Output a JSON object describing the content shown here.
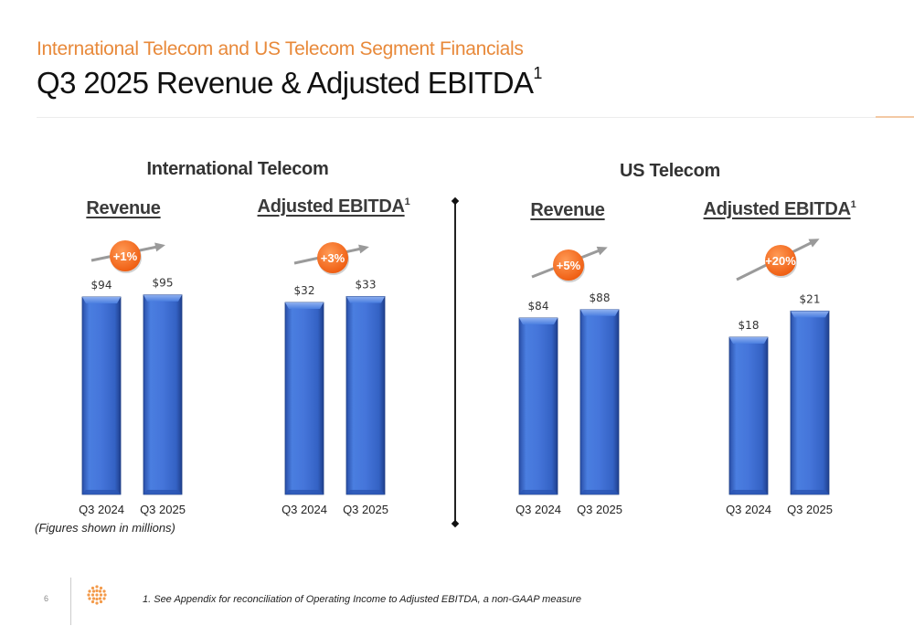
{
  "header": {
    "subtitle": "International Telecom and US Telecom Segment Financials",
    "title": "Q3 2025 Revenue & Adjusted EBITDA",
    "title_sup": "1"
  },
  "segments": [
    {
      "name": "International Telecom"
    },
    {
      "name": "US Telecom"
    }
  ],
  "metric_labels": {
    "revenue": "Revenue",
    "ebitda": "Adjusted EBITDA",
    "ebitda_sup": "1"
  },
  "colors": {
    "bar": "#3f6fd0",
    "bar_dark": "#1e3f8a",
    "badge": "#f26a1b",
    "arrow": "#9a9a9a",
    "accent": "#e8893a"
  },
  "chart_data": [
    {
      "type": "bar",
      "segment": "International Telecom",
      "title": "Revenue",
      "categories": [
        "Q3 2024",
        "Q3 2025"
      ],
      "values": [
        94,
        95
      ],
      "labels": [
        "$94",
        "$95"
      ],
      "change": "+1%"
    },
    {
      "type": "bar",
      "segment": "International Telecom",
      "title": "Adjusted EBITDA1",
      "categories": [
        "Q3 2024",
        "Q3 2025"
      ],
      "values": [
        32,
        33
      ],
      "labels": [
        "$32",
        "$33"
      ],
      "change": "+3%"
    },
    {
      "type": "bar",
      "segment": "US Telecom",
      "title": "Revenue",
      "categories": [
        "Q3 2024",
        "Q3 2025"
      ],
      "values": [
        84,
        88
      ],
      "labels": [
        "$84",
        "$88"
      ],
      "change": "+5%"
    },
    {
      "type": "bar",
      "segment": "US Telecom",
      "title": "Adjusted EBITDA1",
      "categories": [
        "Q3 2024",
        "Q3 2025"
      ],
      "values": [
        18,
        21
      ],
      "labels": [
        "$18",
        "$21"
      ],
      "change": "+20%"
    }
  ],
  "notes": {
    "figures": "(Figures shown in millions)",
    "footnote": "1.   See Appendix for reconciliation of Operating Income to Adjusted EBITDA, a non-GAAP measure",
    "page": "6"
  }
}
